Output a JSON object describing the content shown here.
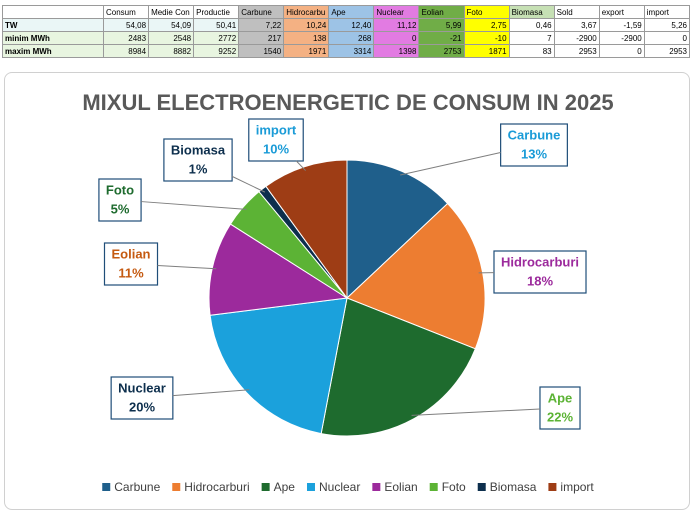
{
  "table": {
    "header": [
      "Consum",
      "Medie Con",
      "Productie",
      "Carbune",
      "Hidrocarbu",
      "Ape",
      "Nuclear",
      "Eolian",
      "Foto",
      "Biomasa",
      "Sold",
      "export",
      "import"
    ],
    "rows": [
      {
        "label": "TW",
        "cells": [
          "54,08",
          "54,09",
          "50,41",
          "7,22",
          "10,24",
          "12,40",
          "11,12",
          "5,99",
          "2,75",
          "0,46",
          "3,67",
          "-1,59",
          "5,26"
        ]
      },
      {
        "label": "minim MWh",
        "cells": [
          "2483",
          "2548",
          "2772",
          "217",
          "138",
          "268",
          "0",
          "-21",
          "-10",
          "7",
          "-2900",
          "-2900",
          "0"
        ]
      },
      {
        "label": "maxim MWh",
        "cells": [
          "8984",
          "8882",
          "9252",
          "1540",
          "1971",
          "3314",
          "1398",
          "2753",
          "1871",
          "83",
          "2953",
          "0",
          "2953"
        ]
      }
    ]
  },
  "chart_data": {
    "type": "pie",
    "title": "MIXUL ELECTROENERGETIC DE CONSUM IN 2025",
    "categories": [
      "Carbune",
      "Hidrocarburi",
      "Ape",
      "Nuclear",
      "Eolian",
      "Foto",
      "Biomasa",
      "import"
    ],
    "values": [
      13,
      18,
      22,
      20,
      11,
      5,
      1,
      10
    ],
    "value_labels": [
      "13%",
      "18%",
      "22%",
      "20%",
      "11%",
      "5%",
      "1%",
      "10%"
    ],
    "colors": [
      "#1f5f8b",
      "#ed7d31",
      "#1e6b2e",
      "#1ba1dc",
      "#9c2a9c",
      "#5cb335",
      "#0d2f4d",
      "#9e3d15"
    ],
    "label_colors": [
      "#1a9bd7",
      "#9c2a9c",
      "#5cb335",
      "#0d2f4d",
      "#c55a11",
      "#1e6b2e",
      "#0d2f4d",
      "#1a9bd7"
    ],
    "legend": "bottom"
  }
}
